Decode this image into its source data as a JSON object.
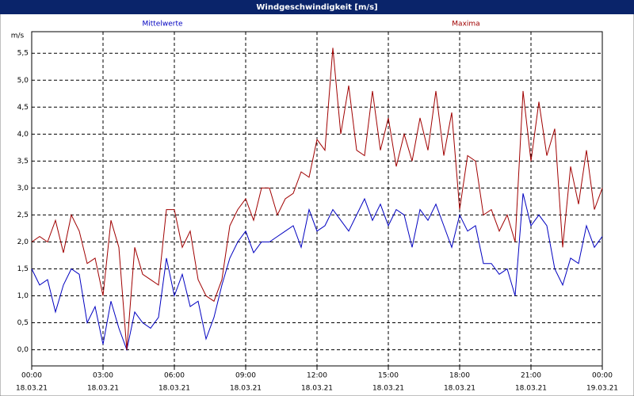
{
  "chart_data": {
    "type": "line",
    "title": "Windgeschwindigkeit [m/s]",
    "y_unit": "m/s",
    "x": [
      0,
      20,
      40,
      60,
      80,
      100,
      120,
      140,
      160,
      180,
      200,
      220,
      240,
      260,
      280,
      300,
      320,
      340,
      360,
      380,
      400,
      420,
      440,
      460,
      480,
      500,
      520,
      540,
      560,
      580,
      600,
      620,
      640,
      660,
      680,
      700,
      720,
      740,
      760,
      780,
      800,
      820,
      840,
      860,
      880,
      900,
      920,
      940,
      960,
      980,
      1000,
      1020,
      1040,
      1060,
      1080,
      1100,
      1120,
      1140,
      1160,
      1180,
      1200,
      1220,
      1240,
      1260,
      1280,
      1300,
      1320,
      1340,
      1360,
      1380,
      1400,
      1420,
      1440
    ],
    "series": [
      {
        "name": "Mittelwerte",
        "color": "#0000c0",
        "values": [
          1.5,
          1.2,
          1.3,
          0.7,
          1.2,
          1.5,
          1.4,
          0.5,
          0.8,
          0.1,
          0.9,
          0.4,
          0.0,
          0.7,
          0.5,
          0.4,
          0.6,
          1.7,
          1.0,
          1.4,
          0.8,
          0.9,
          0.2,
          0.6,
          1.2,
          1.7,
          2.0,
          2.2,
          1.8,
          2.0,
          2.0,
          2.1,
          2.2,
          2.3,
          1.9,
          2.6,
          2.2,
          2.3,
          2.6,
          2.4,
          2.2,
          2.5,
          2.8,
          2.4,
          2.7,
          2.3,
          2.6,
          2.5,
          1.9,
          2.6,
          2.4,
          2.7,
          2.3,
          1.9,
          2.5,
          2.2,
          2.3,
          1.6,
          1.6,
          1.4,
          1.5,
          1.0,
          2.9,
          2.3,
          2.5,
          2.3,
          1.5,
          1.2,
          1.7,
          1.6,
          2.3,
          1.9,
          2.1
        ]
      },
      {
        "name": "Maxima",
        "color": "#a00000",
        "values": [
          2.0,
          2.1,
          2.0,
          2.4,
          1.8,
          2.5,
          2.2,
          1.6,
          1.7,
          1.0,
          2.4,
          1.9,
          0.0,
          1.9,
          1.4,
          1.3,
          1.2,
          2.6,
          2.6,
          1.9,
          2.2,
          1.3,
          1.0,
          0.9,
          1.3,
          2.3,
          2.6,
          2.8,
          2.4,
          3.0,
          3.0,
          2.5,
          2.8,
          2.9,
          3.3,
          3.2,
          3.9,
          3.7,
          5.6,
          4.0,
          4.9,
          3.7,
          3.6,
          4.8,
          3.7,
          4.3,
          3.4,
          4.0,
          3.5,
          4.3,
          3.7,
          4.8,
          3.6,
          4.4,
          2.6,
          3.6,
          3.5,
          2.5,
          2.6,
          2.2,
          2.5,
          2.0,
          4.8,
          3.5,
          4.6,
          3.6,
          4.1,
          1.9,
          3.4,
          2.7,
          3.7,
          2.6,
          3.0
        ]
      }
    ],
    "xlim": [
      0,
      1440
    ],
    "xticks": [
      {
        "value": 0,
        "label": "00:00",
        "date": "18.03.21"
      },
      {
        "value": 180,
        "label": "03:00",
        "date": "18.03.21"
      },
      {
        "value": 360,
        "label": "06:00",
        "date": "18.03.21"
      },
      {
        "value": 540,
        "label": "09:00",
        "date": "18.03.21"
      },
      {
        "value": 720,
        "label": "12:00",
        "date": "18.03.21"
      },
      {
        "value": 900,
        "label": "15:00",
        "date": "18.03.21"
      },
      {
        "value": 1080,
        "label": "18:00",
        "date": "18.03.21"
      },
      {
        "value": 1260,
        "label": "21:00",
        "date": "18.03.21"
      },
      {
        "value": 1440,
        "label": "00:00",
        "date": "19.03.21"
      }
    ],
    "ylim": [
      -0.3,
      5.9
    ],
    "yticks": [
      {
        "value": 0,
        "label": "0,0"
      },
      {
        "value": 0.5,
        "label": "0,5"
      },
      {
        "value": 1,
        "label": "1,0"
      },
      {
        "value": 1.5,
        "label": "1,5"
      },
      {
        "value": 2,
        "label": "2,0"
      },
      {
        "value": 2.5,
        "label": "2,5"
      },
      {
        "value": 3,
        "label": "3,0"
      },
      {
        "value": 3.5,
        "label": "3,5"
      },
      {
        "value": 4,
        "label": "4,0"
      },
      {
        "value": 4.5,
        "label": "4,5"
      },
      {
        "value": 5,
        "label": "5,0"
      },
      {
        "value": 5.5,
        "label": "5,5"
      }
    ],
    "grid": true
  }
}
